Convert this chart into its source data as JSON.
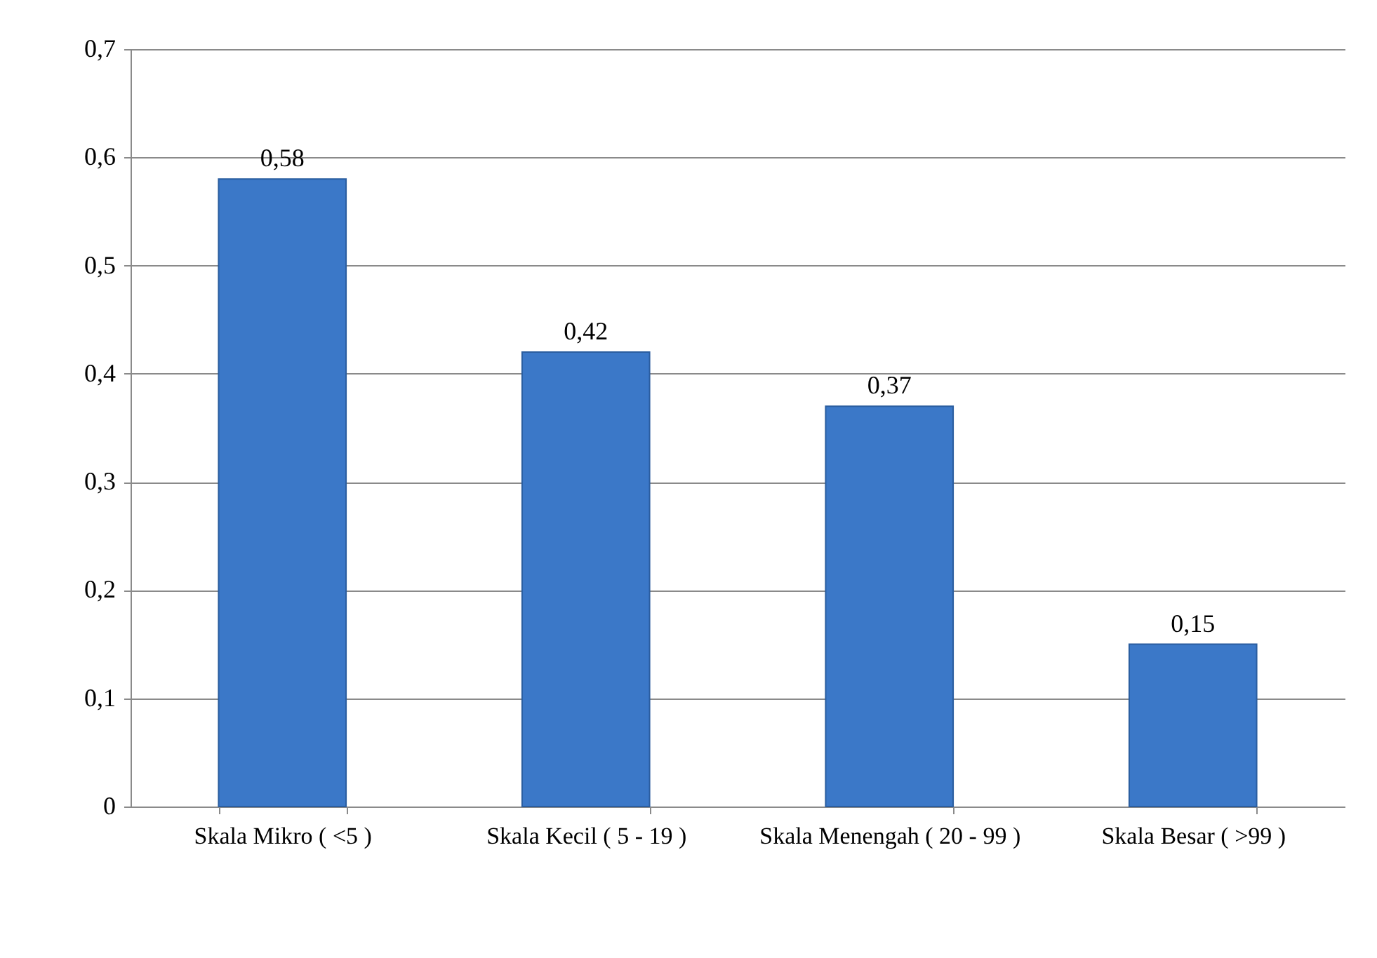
{
  "chart_data": {
    "type": "bar",
    "categories": [
      "Skala Mikro ( <5 )",
      "Skala Kecil ( 5 - 19 )",
      "Skala Menengah ( 20 - 99 )",
      "Skala Besar ( >99 )"
    ],
    "values": [
      0.58,
      0.42,
      0.37,
      0.15
    ],
    "value_labels": [
      "0,58",
      "0,42",
      "0,37",
      "0,15"
    ],
    "color": "#3b78c8",
    "ylim": [
      0,
      0.7
    ],
    "yticks": [
      {
        "value": 0,
        "label": "0"
      },
      {
        "value": 0.1,
        "label": "0,1"
      },
      {
        "value": 0.2,
        "label": "0,2"
      },
      {
        "value": 0.3,
        "label": "0,3"
      },
      {
        "value": 0.4,
        "label": "0,4"
      },
      {
        "value": 0.5,
        "label": "0,5"
      },
      {
        "value": 0.6,
        "label": "0,6"
      },
      {
        "value": 0.7,
        "label": "0,7"
      }
    ],
    "grid": "y"
  }
}
